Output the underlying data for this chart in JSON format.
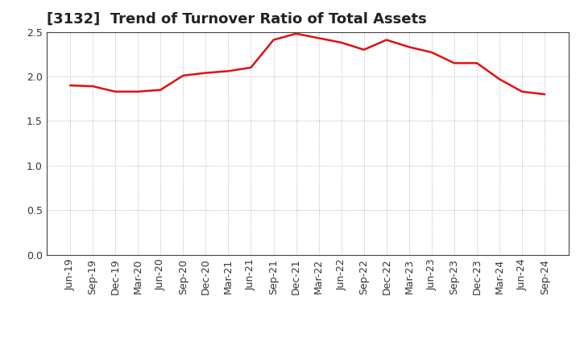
{
  "title": "[3132]  Trend of Turnover Ratio of Total Assets",
  "x_labels": [
    "Jun-19",
    "Sep-19",
    "Dec-19",
    "Mar-20",
    "Jun-20",
    "Sep-20",
    "Dec-20",
    "Mar-21",
    "Jun-21",
    "Sep-21",
    "Dec-21",
    "Mar-22",
    "Jun-22",
    "Sep-22",
    "Dec-22",
    "Mar-23",
    "Jun-23",
    "Sep-23",
    "Dec-23",
    "Mar-24",
    "Jun-24",
    "Sep-24"
  ],
  "values": [
    1.9,
    1.89,
    1.83,
    1.83,
    1.85,
    2.01,
    2.04,
    2.06,
    2.1,
    2.41,
    2.48,
    2.43,
    2.38,
    2.3,
    2.41,
    2.33,
    2.27,
    2.15,
    2.15,
    1.97,
    1.83,
    1.8
  ],
  "line_color": "#e01010",
  "background_color": "#ffffff",
  "plot_bg_color": "#ffffff",
  "grid_color": "#b0b0b0",
  "ylim": [
    0.0,
    2.5
  ],
  "yticks": [
    0.0,
    0.5,
    1.0,
    1.5,
    2.0,
    2.5
  ],
  "title_fontsize": 13,
  "tick_fontsize": 9,
  "line_width": 1.8
}
